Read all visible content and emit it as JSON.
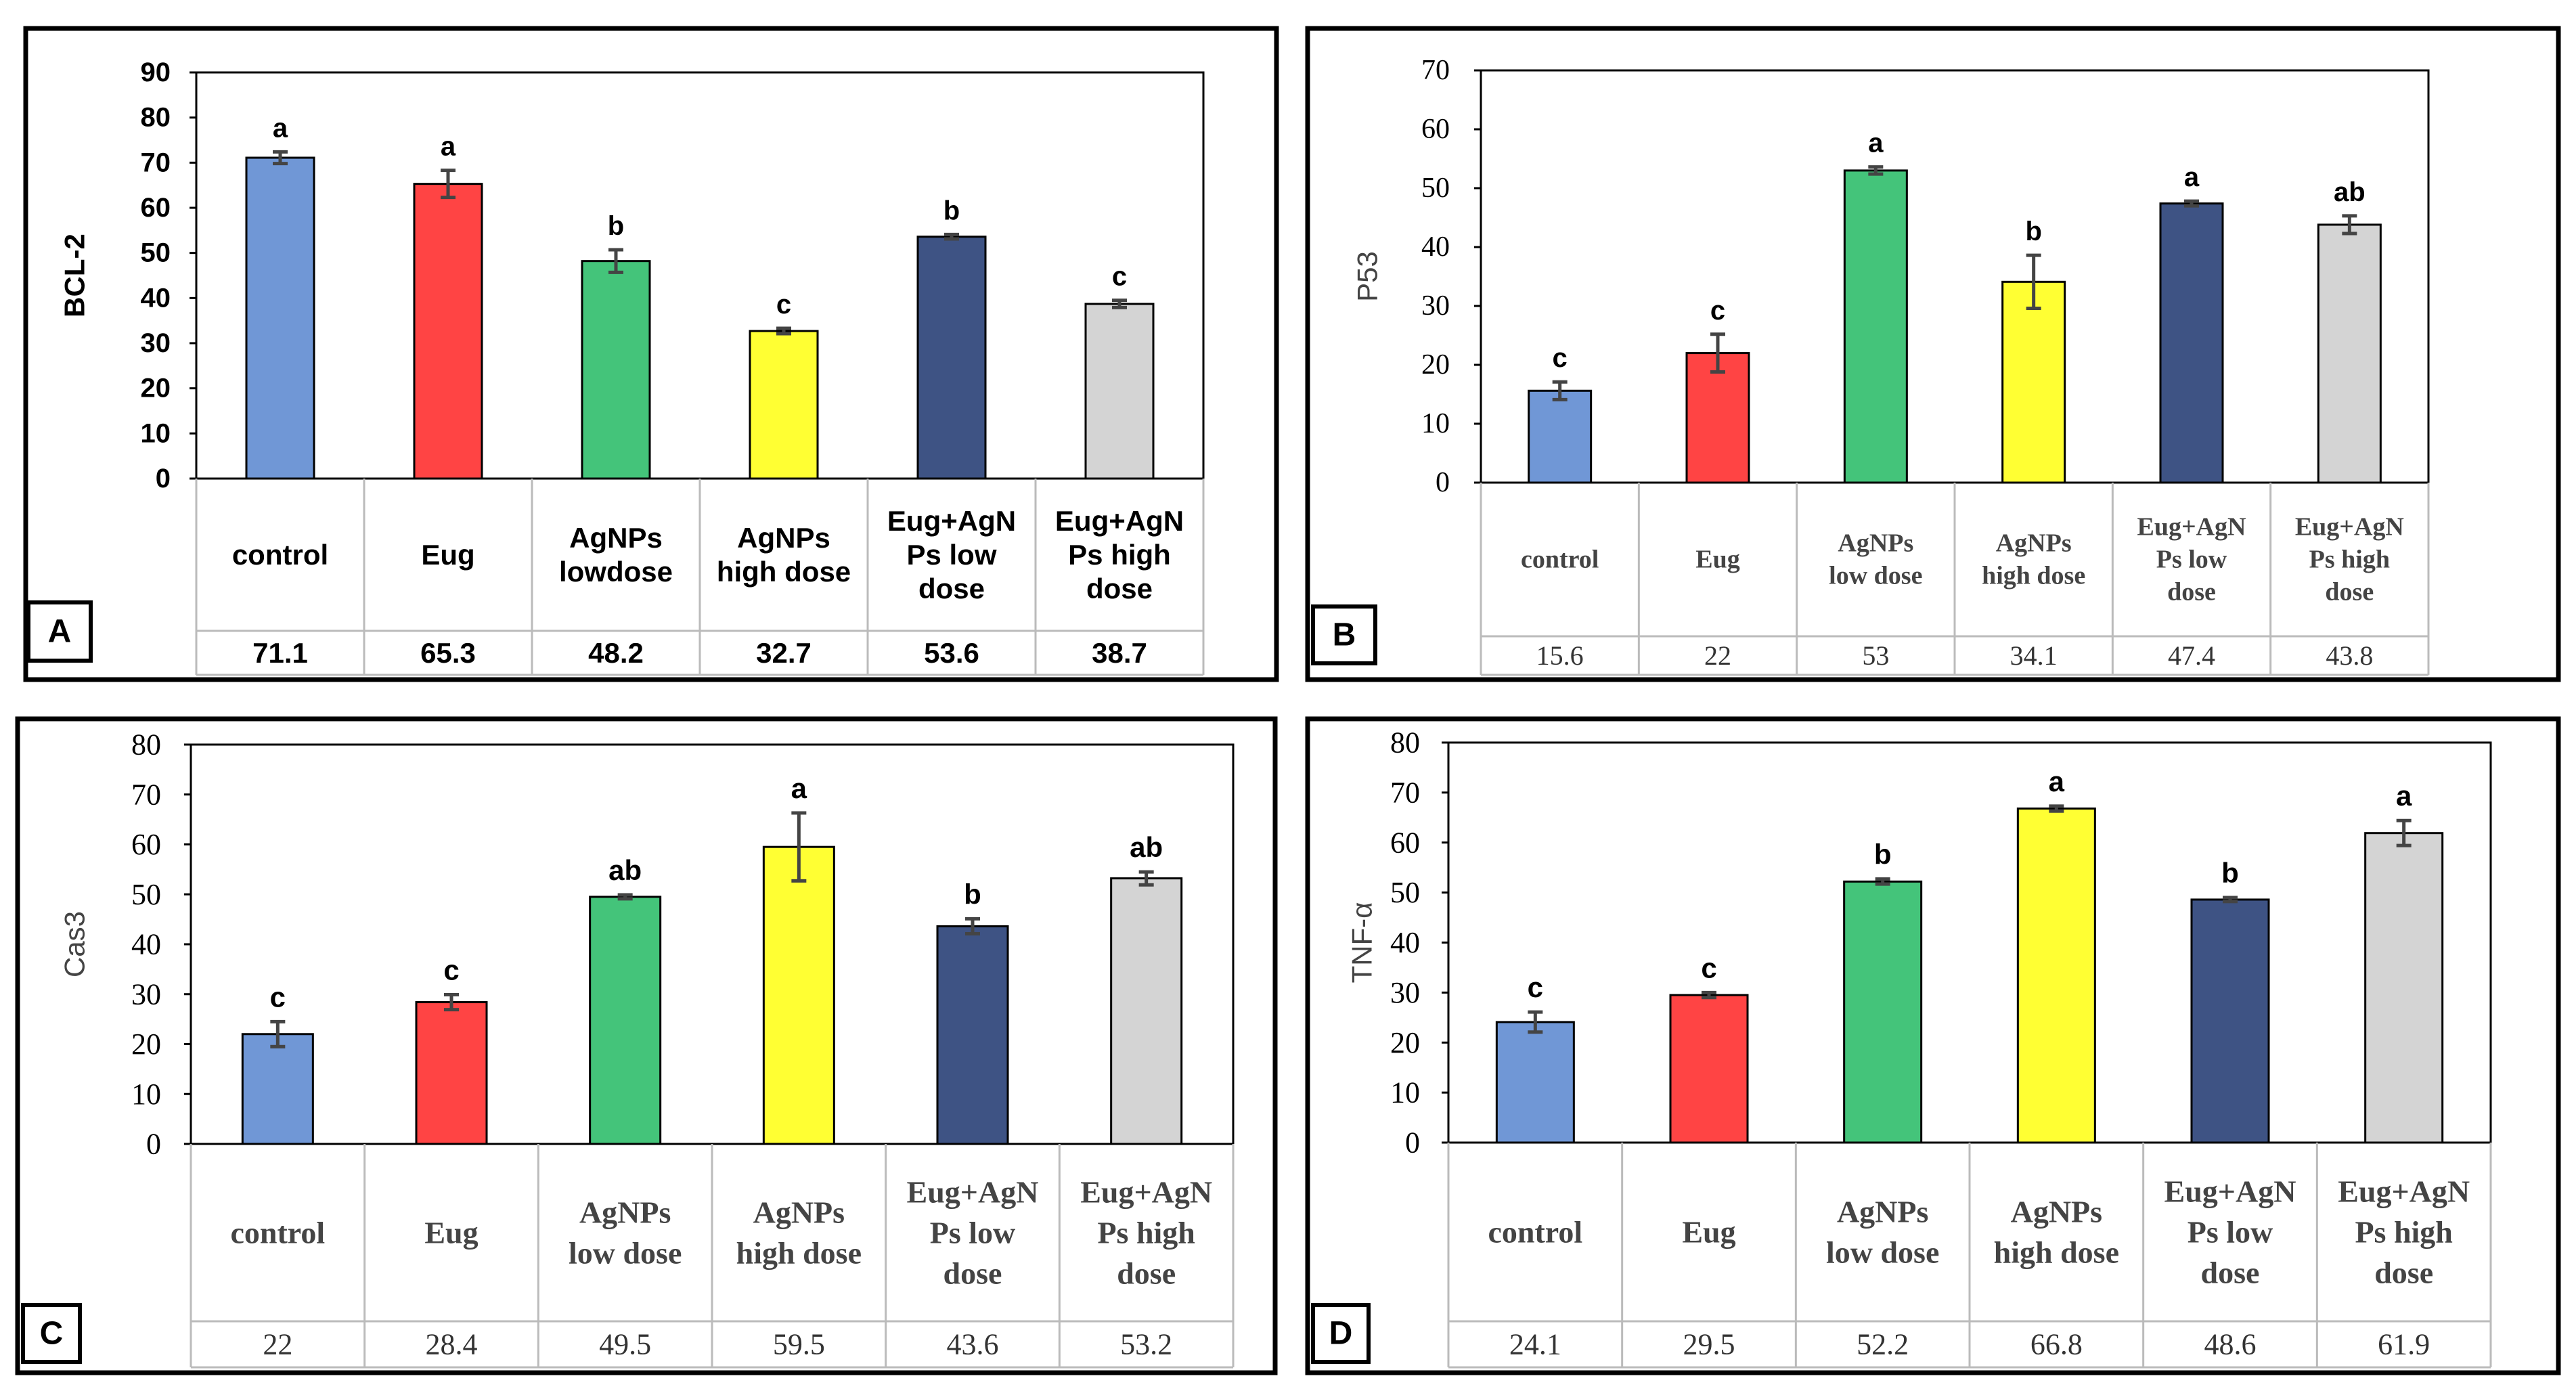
{
  "colors": [
    "#7097d6",
    "#ff4444",
    "#44c47a",
    "#ffff33",
    "#3e5384",
    "#d4d4d4"
  ],
  "chart_data": [
    {
      "type": "bar",
      "panel_label": "A",
      "ylabel": "BCL-2",
      "ylim": [
        0,
        90
      ],
      "yticks": [
        0,
        10,
        20,
        30,
        40,
        50,
        60,
        70,
        80,
        90
      ],
      "categories": [
        [
          "control"
        ],
        [
          "Eug"
        ],
        [
          "AgNPs",
          "lowdose"
        ],
        [
          "AgNPs",
          "high dose"
        ],
        [
          "Eug+AgN",
          "Ps low",
          "dose"
        ],
        [
          "Eug+AgN",
          "Ps high",
          "dose"
        ]
      ],
      "values": [
        71.1,
        65.3,
        48.2,
        32.7,
        53.6,
        38.7
      ],
      "value_labels": [
        "71.1",
        "65.3",
        "48.2",
        "32.7",
        "53.6",
        "38.7"
      ],
      "errors": [
        1.3,
        3.0,
        2.5,
        0.6,
        0.5,
        0.8
      ],
      "letters": [
        "a",
        "a",
        "b",
        "c",
        "b",
        "c"
      ]
    },
    {
      "type": "bar",
      "panel_label": "B",
      "ylabel": "P53",
      "ylim": [
        0,
        70
      ],
      "yticks": [
        0,
        10,
        20,
        30,
        40,
        50,
        60,
        70
      ],
      "categories": [
        [
          "control"
        ],
        [
          "Eug"
        ],
        [
          "AgNPs",
          "low dose"
        ],
        [
          "AgNPs",
          "high dose"
        ],
        [
          "Eug+AgN",
          "Ps low",
          "dose"
        ],
        [
          "Eug+AgN",
          "Ps high",
          "dose"
        ]
      ],
      "values": [
        15.6,
        22,
        53,
        34.1,
        47.4,
        43.8
      ],
      "value_labels": [
        "15.6",
        "22",
        "53",
        "34.1",
        "47.4",
        "43.8"
      ],
      "errors": [
        1.5,
        3.2,
        0.6,
        4.5,
        0.4,
        1.5
      ],
      "letters": [
        "c",
        "c",
        "a",
        "b",
        "a",
        "ab"
      ]
    },
    {
      "type": "bar",
      "panel_label": "C",
      "ylabel": "Cas3",
      "ylim": [
        0,
        80
      ],
      "yticks": [
        0,
        10,
        20,
        30,
        40,
        50,
        60,
        70,
        80
      ],
      "categories": [
        [
          "control"
        ],
        [
          "Eug"
        ],
        [
          "AgNPs",
          "low dose"
        ],
        [
          "AgNPs",
          "high dose"
        ],
        [
          "Eug+AgN",
          "Ps low",
          "dose"
        ],
        [
          "Eug+AgN",
          "Ps high",
          "dose"
        ]
      ],
      "values": [
        22,
        28.4,
        49.5,
        59.5,
        43.6,
        53.2
      ],
      "value_labels": [
        "22",
        "28.4",
        "49.5",
        "59.5",
        "43.6",
        "53.2"
      ],
      "errors": [
        2.5,
        1.5,
        0.4,
        6.8,
        1.5,
        1.3
      ],
      "letters": [
        "c",
        "c",
        "ab",
        "a",
        "b",
        "ab"
      ]
    },
    {
      "type": "bar",
      "panel_label": "D",
      "ylabel": "TNF-α",
      "ylim": [
        0,
        80
      ],
      "yticks": [
        0,
        10,
        20,
        30,
        40,
        50,
        60,
        70,
        80
      ],
      "categories": [
        [
          "control"
        ],
        [
          "Eug"
        ],
        [
          "AgNPs",
          "low dose"
        ],
        [
          "AgNPs",
          "high dose"
        ],
        [
          "Eug+AgN",
          "Ps low",
          "dose"
        ],
        [
          "Eug+AgN",
          "Ps high",
          "dose"
        ]
      ],
      "values": [
        24.1,
        29.5,
        52.2,
        66.8,
        48.6,
        61.9
      ],
      "value_labels": [
        "24.1",
        "29.5",
        "52.2",
        "66.8",
        "48.6",
        "61.9"
      ],
      "errors": [
        2.0,
        0.5,
        0.5,
        0.5,
        0.4,
        2.5
      ],
      "letters": [
        "c",
        "c",
        "b",
        "a",
        "b",
        "a"
      ]
    }
  ]
}
